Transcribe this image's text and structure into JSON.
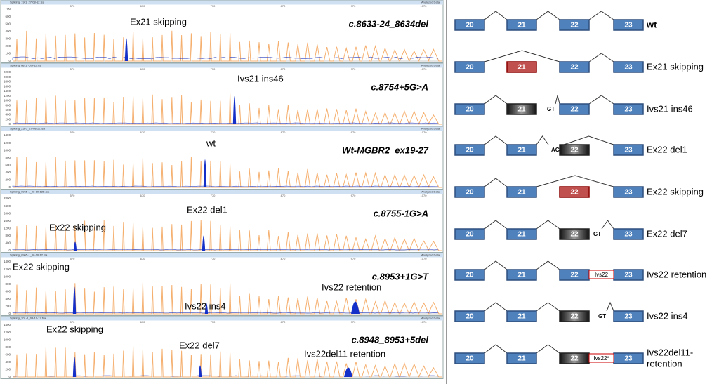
{
  "xticks": [
    "570",
    "670",
    "770",
    "870",
    "970",
    "1070"
  ],
  "panels": [
    {
      "file": "Splicing_19-1_27-08-12.fsa",
      "status": "Analyzed Data",
      "sample": "c.8633-24_8634del",
      "yticks": [
        700,
        600,
        500,
        400,
        300,
        200,
        100,
        0
      ],
      "annotations": [
        "Ex21 skipping"
      ]
    },
    {
      "file": "Splicing_ge-1_Ctrl-12.fsa",
      "status": "Analyzed Data",
      "sample": "c.8754+5G>A",
      "yticks": [
        2200,
        2000,
        1800,
        1600,
        1400,
        1200,
        1000,
        800,
        600,
        400,
        200,
        0
      ],
      "annotations": [
        "Ivs21 ins46"
      ]
    },
    {
      "file": "Splicing_23i-1_27-08-12.fsa",
      "status": "Analyzed Data",
      "sample": "Wt-MGBR2_ex19-27",
      "yticks": [
        1400,
        1200,
        1000,
        800,
        600,
        400,
        200,
        0
      ],
      "annotations": [
        "wt"
      ]
    },
    {
      "file": "Splicing_8965-1_08-10-12B.fsa",
      "status": "Analyzed Data",
      "sample": "c.8755-1G>A",
      "yticks": [
        2800,
        2400,
        2000,
        1600,
        1200,
        800,
        400,
        0
      ],
      "annotations": [
        "Ex22 skipping",
        "Ex22 del1"
      ]
    },
    {
      "file": "Splicing_8965-1_08-10-12.fsa",
      "status": "Analyzed Data",
      "sample": "c.8953+1G>T",
      "yticks": [
        1400,
        1200,
        1000,
        800,
        600,
        400,
        200,
        0
      ],
      "annotations": [
        "Ex22 skipping",
        "Ivs22 ins4",
        "Ivs22 retention"
      ]
    },
    {
      "file": "Splicing_201-1_08-10-12.fsa",
      "status": "Analyzed Data",
      "sample": "c.8948_8953+5del",
      "yticks": [
        1400,
        1200,
        1000,
        800,
        600,
        400,
        200,
        0
      ],
      "annotations": [
        "Ex22 skipping",
        "Ex22 del7",
        "Ivs22del11 retention"
      ]
    }
  ],
  "diagrams": [
    {
      "exons": [
        "20",
        "21",
        "22",
        "23"
      ],
      "label": [
        "wt"
      ]
    },
    {
      "exons": [
        "20",
        "21",
        "22",
        "23"
      ],
      "label": [
        "Ex21 skipping"
      ]
    },
    {
      "exons": [
        "20",
        "21",
        "22",
        "23"
      ],
      "tag": "GT",
      "label": [
        "Ivs21 ins46"
      ]
    },
    {
      "exons": [
        "20",
        "21",
        "22",
        "23"
      ],
      "tag": "AG",
      "label": [
        "Ex22 del1"
      ]
    },
    {
      "exons": [
        "20",
        "21",
        "22",
        "23"
      ],
      "label": [
        "Ex22 skipping"
      ]
    },
    {
      "exons": [
        "20",
        "21",
        "22",
        "23"
      ],
      "tag": "GT",
      "label": [
        "Ex22 del7"
      ]
    },
    {
      "exons": [
        "20",
        "21",
        "22",
        "23"
      ],
      "tag": "Ivs22",
      "label": [
        "Ivs22 retention"
      ]
    },
    {
      "exons": [
        "20",
        "21",
        "22",
        "23"
      ],
      "tag": "GT",
      "label": [
        "Ivs22 ins4"
      ]
    },
    {
      "exons": [
        "20",
        "21",
        "22",
        "23"
      ],
      "tag": "Ivs22*",
      "label": [
        "Ivs22del11-",
        "retention"
      ]
    }
  ]
}
